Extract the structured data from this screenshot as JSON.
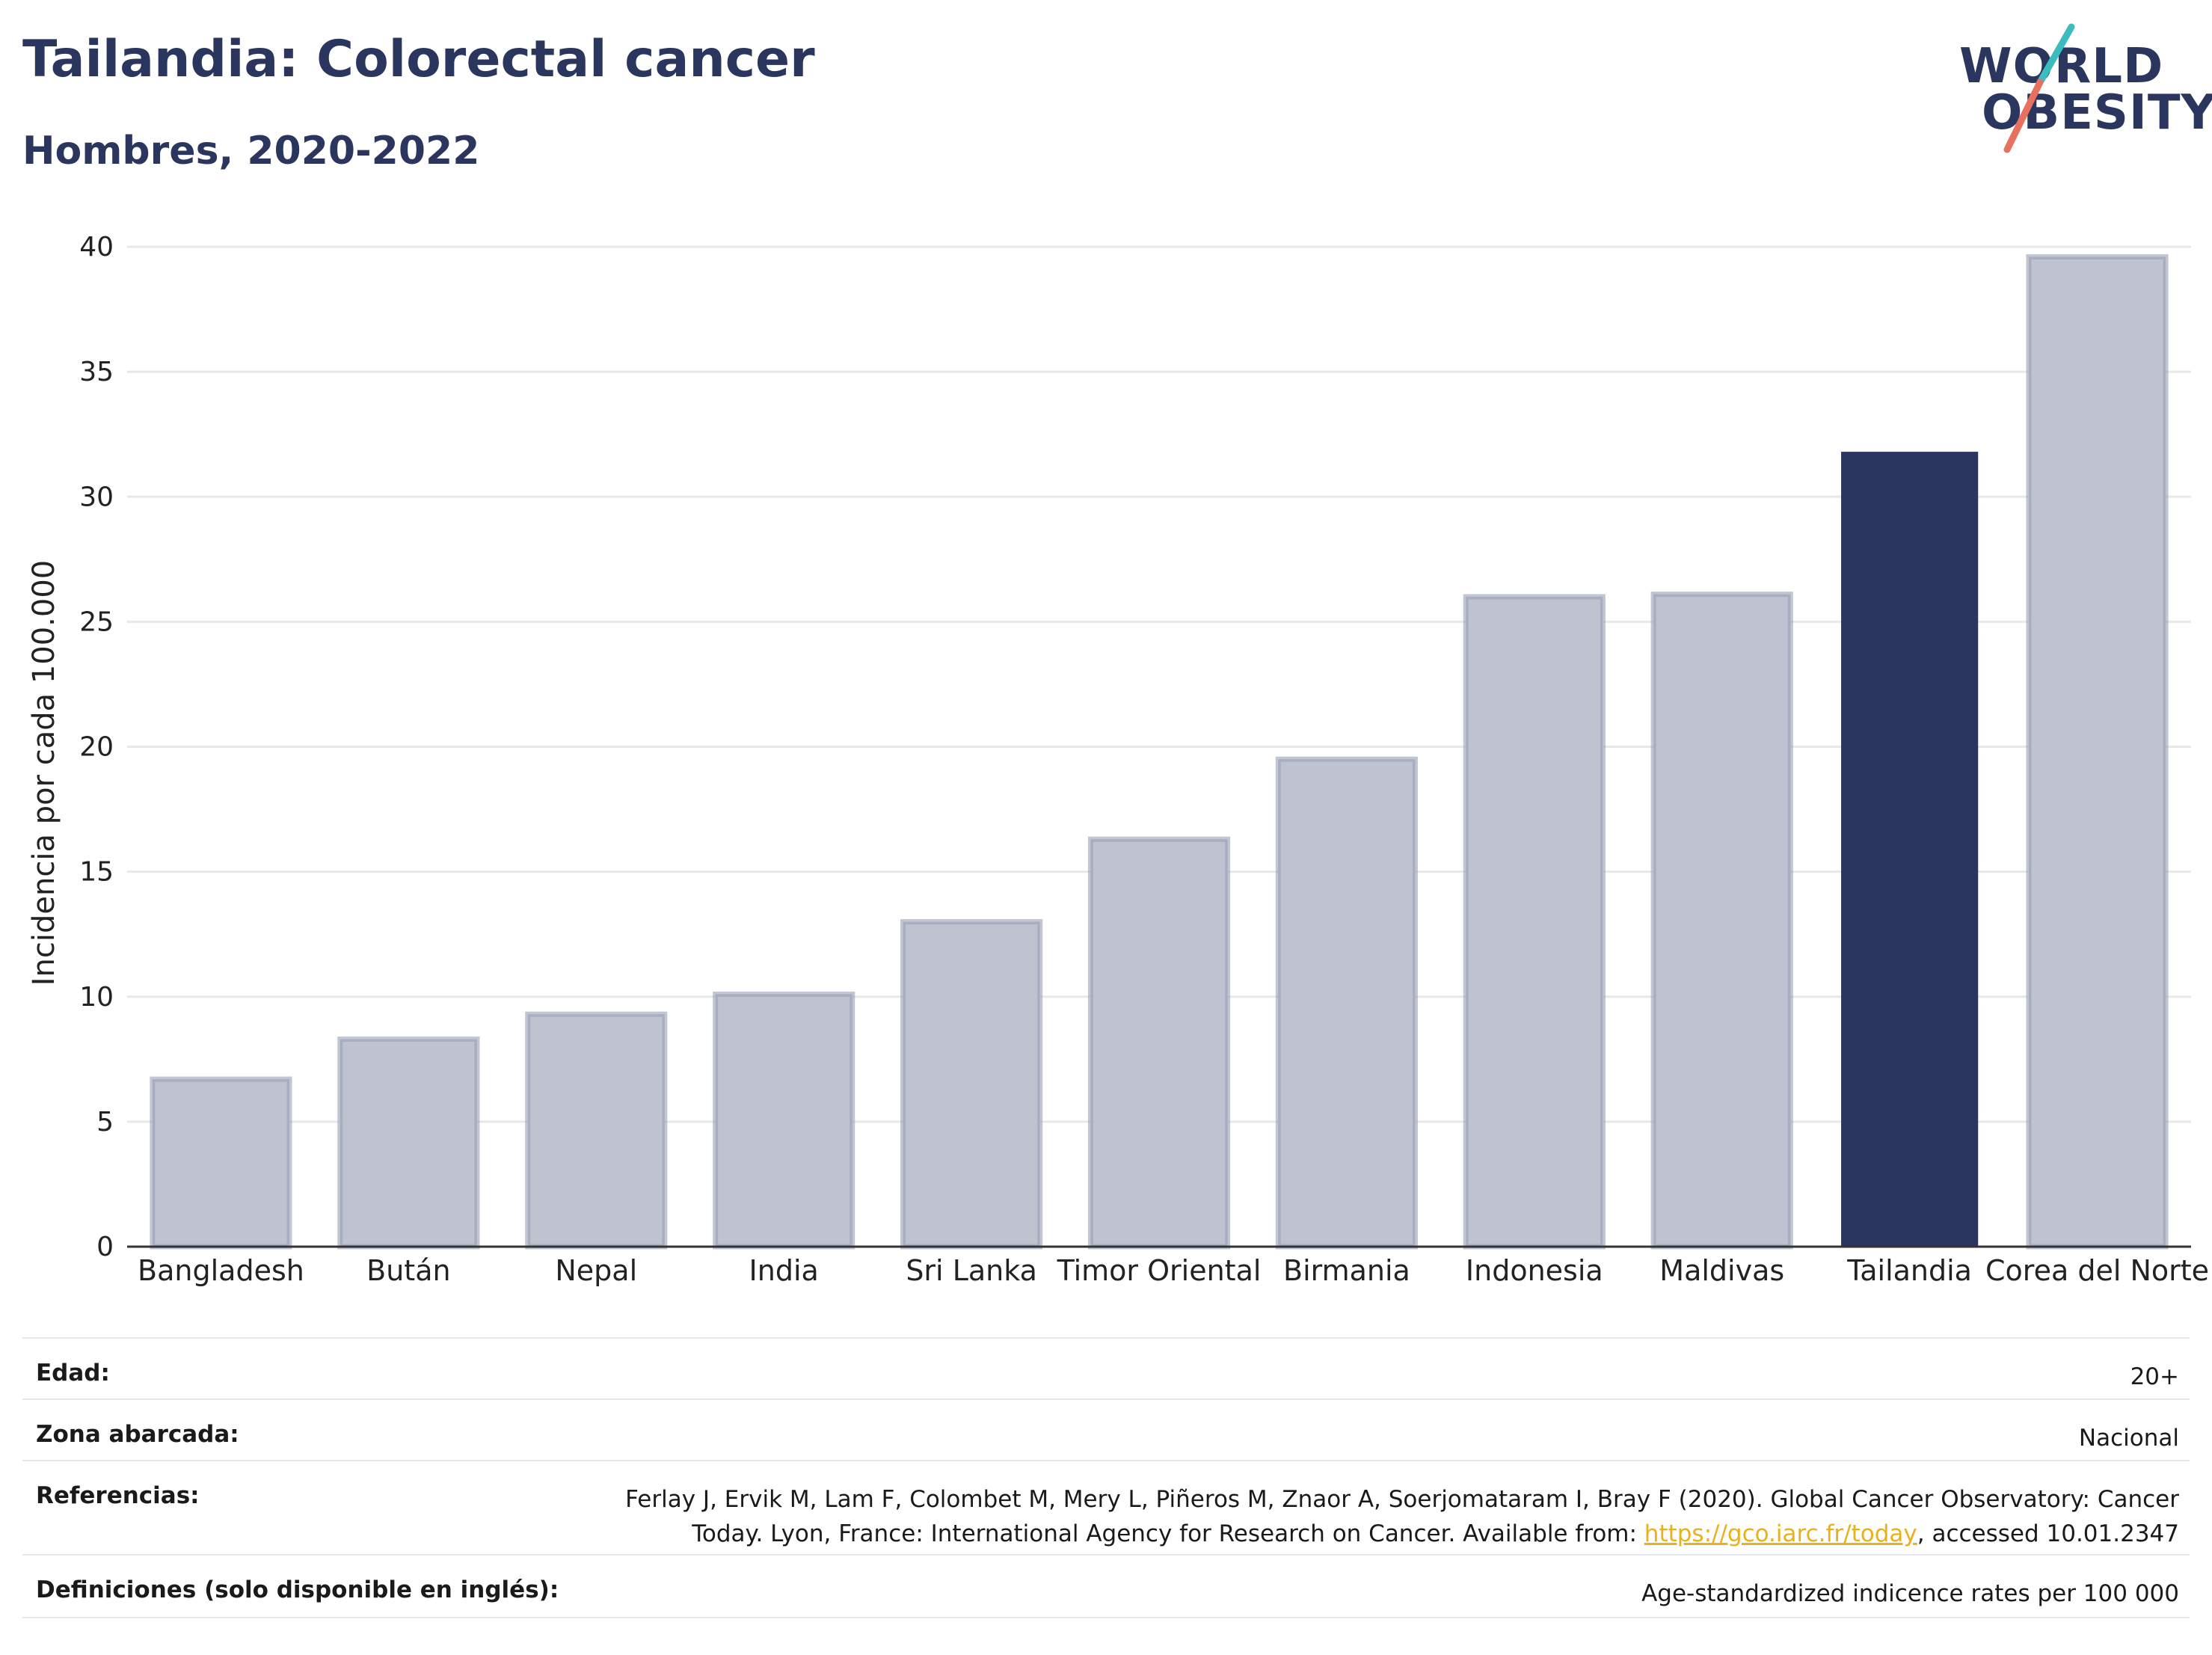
{
  "header": {
    "title": "Tailandia: Colorectal cancer",
    "subtitle": "Hombres, 2020-2022"
  },
  "logo": {
    "line1": "WORLD",
    "line2": "OBESITY"
  },
  "chart_data": {
    "type": "bar",
    "categories": [
      "Bangladesh",
      "Bután",
      "Nepal",
      "India",
      "Sri Lanka",
      "Timor Oriental",
      "Birmania",
      "Indonesia",
      "Maldivas",
      "Tailandia",
      "Corea del Norte"
    ],
    "values": [
      6.7,
      8.3,
      9.3,
      10.1,
      13.0,
      16.3,
      19.5,
      26.0,
      26.1,
      31.8,
      39.6
    ],
    "highlight": "Tailandia",
    "ylabel": "Incidencia por cada 100.000",
    "xlabel": "",
    "ylim": [
      0,
      40
    ],
    "yticks": [
      0,
      5,
      10,
      15,
      20,
      25,
      30,
      35,
      40
    ],
    "grid": true,
    "colors": {
      "bar": "#bfc3cf",
      "bar_edge": "#9aa0b6",
      "highlight": "#2b365e",
      "grid": "#e6e8ec",
      "axis": "#333333"
    }
  },
  "info": {
    "age_label": "Edad:",
    "age_value": "20+",
    "area_label": "Zona abarcada:",
    "area_value": "Nacional",
    "ref_label": "Referencias:",
    "ref_line1": "Ferlay J, Ervik M, Lam F, Colombet M, Mery L, Piñeros M, Znaor A, Soerjomataram I, Bray F (2020). Global Cancer Observatory: Cancer",
    "ref_line2_pre": "Today. Lyon, France: International Agency for Research on Cancer. Available from: ",
    "ref_link": "https://gco.iarc.fr/today",
    "ref_line2_post": ", accessed 10.01.2347",
    "def_label": "Definiciones (solo disponible en inglés):",
    "def_value": "Age-standardized indicence rates per 100 000"
  }
}
